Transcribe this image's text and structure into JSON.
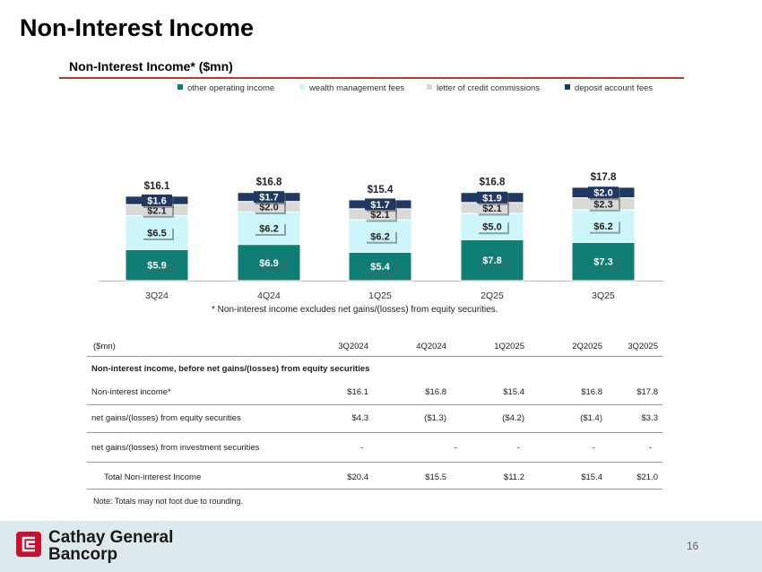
{
  "slide": {
    "title": "Non-Interest Income",
    "page_number": "16"
  },
  "brand": {
    "line1": "Cathay General",
    "line2": "Bancorp",
    "logo_color": "#c8102e"
  },
  "chart_data": {
    "type": "stacked-bar",
    "title": "Non-Interest Income* ($mn)",
    "categories": [
      "3Q24",
      "4Q24",
      "1Q25",
      "2Q25",
      "3Q25"
    ],
    "series": [
      {
        "name": "other operating income",
        "color": "#0f7f76",
        "values": [
          5.9,
          6.9,
          5.4,
          7.8,
          7.3
        ],
        "labels": [
          "$5.9",
          "$6.9",
          "$5.4",
          "$7.8",
          "$7.3"
        ]
      },
      {
        "name": "wealth management fees",
        "color": "#ccf6fa",
        "values": [
          6.5,
          6.2,
          6.2,
          5.0,
          6.2
        ],
        "labels": [
          "$6.5",
          "$6.2",
          "$6.2",
          "$5.0",
          "$6.2"
        ]
      },
      {
        "name": "letter of credit commissions",
        "color": "#d9d9d9",
        "values": [
          2.1,
          2.0,
          2.1,
          2.1,
          2.3
        ],
        "labels": [
          "$2.1",
          "$2.0",
          "$2.1",
          "$2.1",
          "$2.3"
        ]
      },
      {
        "name": "deposit account fees",
        "color": "#1f3864",
        "values": [
          1.6,
          1.7,
          1.7,
          1.9,
          2.0
        ],
        "labels": [
          "$1.6",
          "$1.7",
          "$1.7",
          "$1.9",
          "$2.0"
        ]
      }
    ],
    "totals": [
      16.1,
      16.8,
      15.4,
      16.8,
      17.8
    ],
    "total_labels": [
      "$16.1",
      "$16.8",
      "$15.4",
      "$16.8",
      "$17.8"
    ],
    "ylim": [
      0,
      20
    ],
    "footnote": "*    Non-interest income excludes net gains/(losses) from equity securities."
  },
  "table": {
    "unit_label": "($mn)",
    "columns": [
      "3Q2024",
      "4Q2024",
      "1Q2025",
      "2Q2025",
      "3Q2025"
    ],
    "section_title": "Non-interest income, before net gains/(losses) from equity securities",
    "rows": [
      {
        "label": "Non-interest income*",
        "values": [
          "$16.1",
          "$16.8",
          "$15.4",
          "$16.8",
          "$17.8"
        ]
      },
      {
        "label": "net gains/(losses) from equity securities",
        "values": [
          "$4.3",
          "($1.3)",
          "($4.2)",
          "($1.4)",
          "$3.3"
        ]
      },
      {
        "label": "net gains/(losses) from investment securities",
        "values": [
          "-",
          "-",
          "-",
          "-",
          "-"
        ]
      },
      {
        "label": "Total Non-interest Income",
        "values": [
          "$20.4",
          "$15.5",
          "$11.2",
          "$15.4",
          "$21.0"
        ]
      }
    ],
    "note": "Note: Totals may not foot due to rounding."
  }
}
